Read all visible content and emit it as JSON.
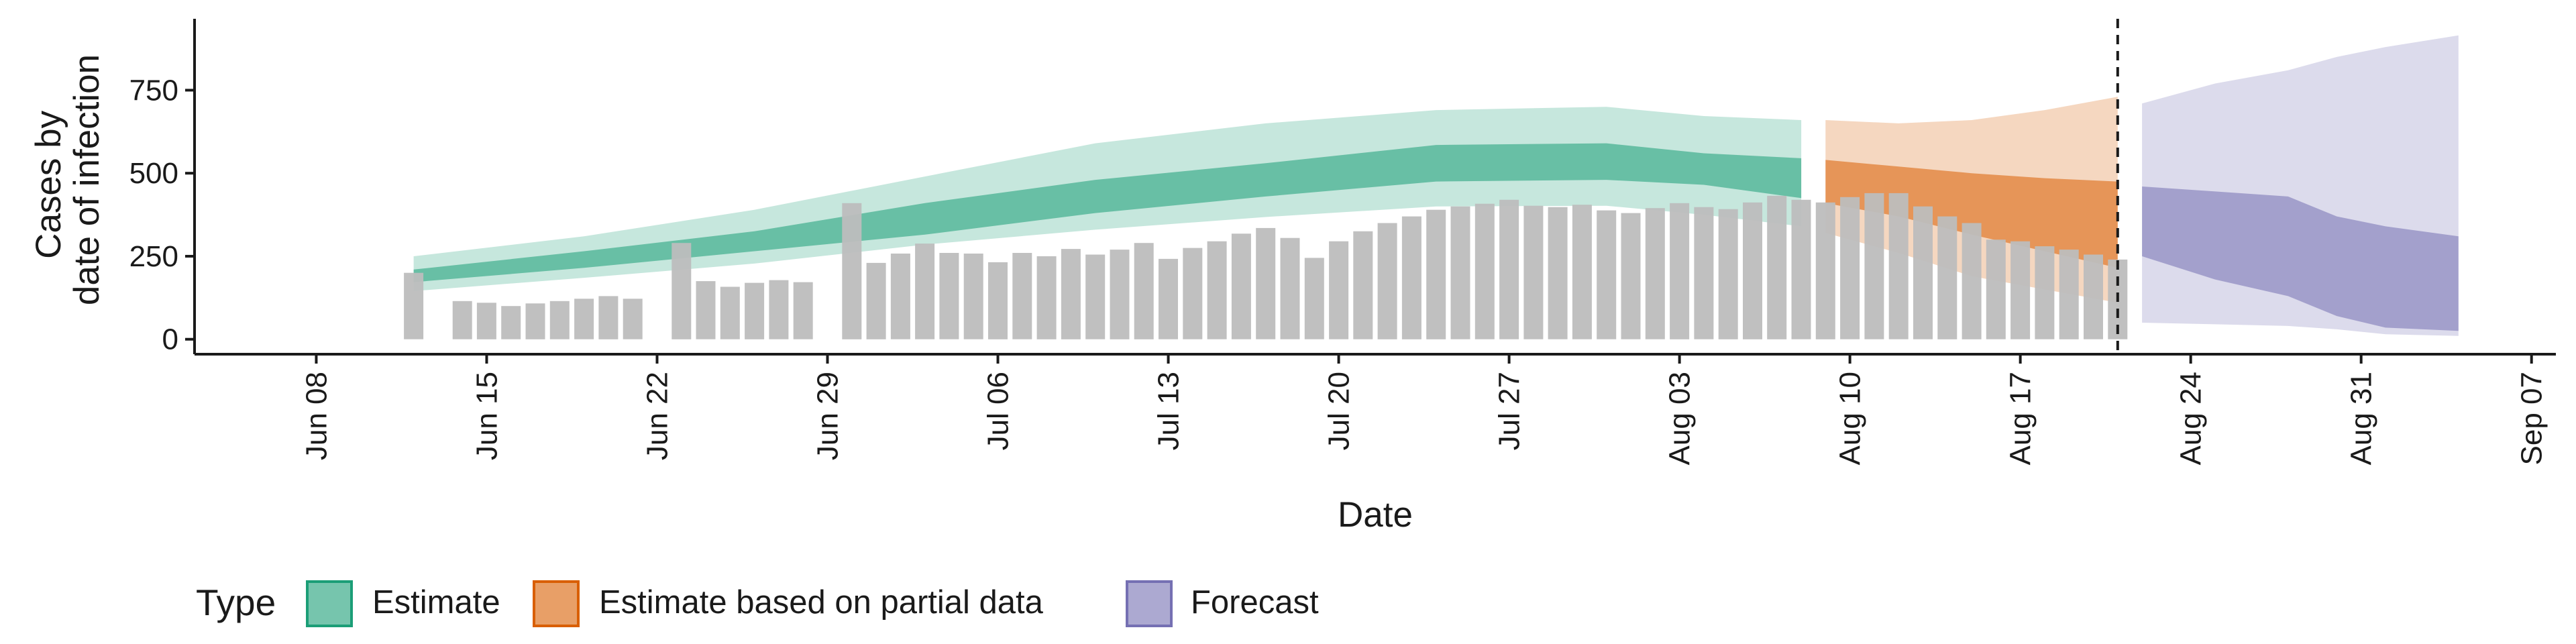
{
  "chart_data": {
    "type": "bar",
    "xlabel": "Date",
    "ylabel_lines": [
      "Cases by",
      "date of infection"
    ],
    "x_ticks": [
      "Jun 08",
      "Jun 15",
      "Jun 22",
      "Jun 29",
      "Jul 06",
      "Jul 13",
      "Jul 20",
      "Jul 27",
      "Aug 03",
      "Aug 10",
      "Aug 17",
      "Aug 24",
      "Aug 31",
      "Sep 07"
    ],
    "y_ticks": [
      0,
      250,
      500,
      750
    ],
    "xlim": [
      "2020-06-03",
      "2020-09-08"
    ],
    "ylim": [
      -45,
      965
    ],
    "vline_date": "2020-08-21",
    "colors": {
      "Estimate": "#1b9e77",
      "Estimate based on partial data": "#d95f02",
      "Forecast": "#7570b3",
      "bars": "#bdbdbd"
    },
    "bars": {
      "dates": [
        "2020-06-12",
        "2020-06-14",
        "2020-06-15",
        "2020-06-16",
        "2020-06-17",
        "2020-06-18",
        "2020-06-19",
        "2020-06-20",
        "2020-06-21",
        "2020-06-23",
        "2020-06-24",
        "2020-06-25",
        "2020-06-26",
        "2020-06-27",
        "2020-06-28",
        "2020-06-30",
        "2020-07-01",
        "2020-07-02",
        "2020-07-03",
        "2020-07-04",
        "2020-07-05",
        "2020-07-06",
        "2020-07-07",
        "2020-07-08",
        "2020-07-09",
        "2020-07-10",
        "2020-07-11",
        "2020-07-12",
        "2020-07-13",
        "2020-07-14",
        "2020-07-15",
        "2020-07-16",
        "2020-07-17",
        "2020-07-18",
        "2020-07-19",
        "2020-07-20",
        "2020-07-21",
        "2020-07-22",
        "2020-07-23",
        "2020-07-24",
        "2020-07-25",
        "2020-07-26",
        "2020-07-27",
        "2020-07-28",
        "2020-07-29",
        "2020-07-30",
        "2020-07-31",
        "2020-08-01",
        "2020-08-02",
        "2020-08-03",
        "2020-08-04",
        "2020-08-05",
        "2020-08-06",
        "2020-08-07",
        "2020-08-08",
        "2020-08-09",
        "2020-08-10",
        "2020-08-11",
        "2020-08-12",
        "2020-08-13",
        "2020-08-14",
        "2020-08-15",
        "2020-08-16",
        "2020-08-17",
        "2020-08-18",
        "2020-08-19",
        "2020-08-20",
        "2020-08-21"
      ],
      "values": [
        200,
        115,
        110,
        100,
        108,
        115,
        122,
        130,
        122,
        290,
        175,
        158,
        170,
        178,
        172,
        410,
        230,
        258,
        288,
        260,
        258,
        232,
        260,
        250,
        272,
        255,
        270,
        290,
        242,
        275,
        295,
        318,
        335,
        305,
        245,
        295,
        325,
        350,
        370,
        390,
        400,
        408,
        420,
        402,
        398,
        405,
        388,
        380,
        395,
        410,
        398,
        392,
        412,
        432,
        420,
        412,
        428,
        440,
        440,
        400,
        370,
        350,
        300,
        295,
        280,
        270,
        255,
        240
      ]
    },
    "series": [
      {
        "name": "Estimate",
        "dates": [
          "2020-06-12",
          "2020-06-19",
          "2020-06-26",
          "2020-07-03",
          "2020-07-10",
          "2020-07-17",
          "2020-07-24",
          "2020-07-31",
          "2020-08-04",
          "2020-08-08"
        ],
        "inner_low": [
          172,
          215,
          265,
          315,
          380,
          430,
          475,
          480,
          465,
          425
        ],
        "inner_high": [
          210,
          265,
          325,
          410,
          480,
          530,
          585,
          590,
          560,
          545
        ],
        "outer_low": [
          145,
          185,
          228,
          285,
          330,
          368,
          400,
          402,
          375,
          340
        ],
        "outer_high": [
          250,
          310,
          390,
          490,
          590,
          650,
          690,
          700,
          672,
          660
        ]
      },
      {
        "name": "Estimate based on partial data",
        "dates": [
          "2020-08-09",
          "2020-08-12",
          "2020-08-15",
          "2020-08-18",
          "2020-08-21"
        ],
        "inner_low": [
          410,
          370,
          315,
          265,
          215
        ],
        "inner_high": [
          540,
          520,
          500,
          485,
          475
        ],
        "outer_low": [
          320,
          260,
          190,
          150,
          110
        ],
        "outer_high": [
          660,
          650,
          660,
          690,
          730
        ]
      },
      {
        "name": "Forecast",
        "dates": [
          "2020-08-22",
          "2020-08-25",
          "2020-08-28",
          "2020-08-30",
          "2020-09-01",
          "2020-09-04"
        ],
        "inner_low": [
          250,
          180,
          130,
          70,
          35,
          25
        ],
        "inner_high": [
          460,
          445,
          430,
          370,
          340,
          310
        ],
        "outer_low": [
          50,
          45,
          40,
          30,
          15,
          10
        ],
        "outer_high": [
          710,
          770,
          810,
          850,
          880,
          915
        ]
      }
    ]
  },
  "legend": {
    "title": "Type",
    "items": [
      "Estimate",
      "Estimate based on partial data",
      "Forecast"
    ]
  }
}
